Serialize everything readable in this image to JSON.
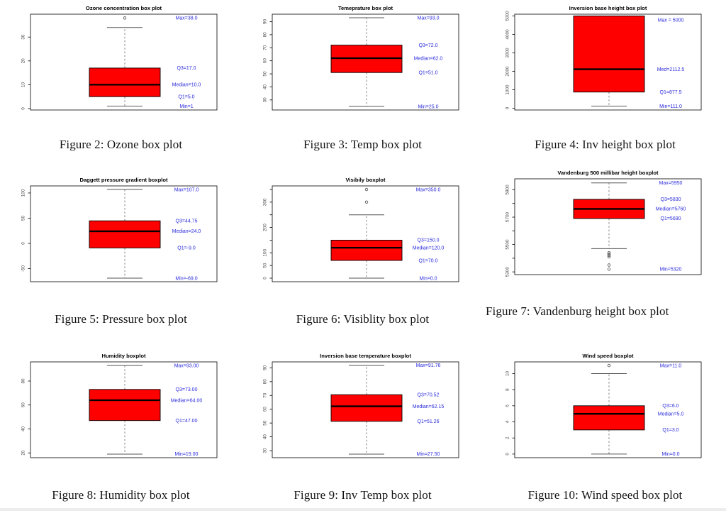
{
  "page": {
    "background": "#ffffff"
  },
  "colors": {
    "box_fill": "#fe0000",
    "box_border": "#000000",
    "median_line": "#000000",
    "whisker_dash": "#7a7a7a",
    "whisker_cap": "#555555",
    "outlier_stroke": "#4a4a4a",
    "panel_border": "#000000",
    "tick_label": "#3f3f3f",
    "plot_title": "#000000",
    "annotation_blue": "#2b2bdd",
    "caption_text": "#141414"
  },
  "chart_data": [
    {
      "type": "boxplot",
      "title": "Ozone concentration box plot",
      "ylim": [
        -0.6,
        39.6
      ],
      "ticks": [
        {
          "v": 0,
          "label": "0"
        },
        {
          "v": 10,
          "label": "10"
        },
        {
          "v": 20,
          "label": "20"
        },
        {
          "v": 30,
          "label": "30"
        }
      ],
      "stats": {
        "min": 1,
        "q1": 5,
        "median": 10,
        "q3": 17,
        "max": 38
      },
      "whisker_low": 1,
      "whisker_high": 34,
      "outliers": [
        38
      ],
      "annotations": [
        {
          "text": "Max=38.0",
          "v": 38
        },
        {
          "text": "Q3=17.0",
          "v": 17
        },
        {
          "text": "Median=10.0",
          "v": 10
        },
        {
          "text": "Q1=5.0",
          "v": 5
        },
        {
          "text": "Min=1",
          "v": 1
        }
      ]
    },
    {
      "type": "boxplot",
      "title": "Temeprature box plot",
      "ylim": [
        22.3,
        95.7
      ],
      "ticks": [
        {
          "v": 30,
          "label": "30"
        },
        {
          "v": 40,
          "label": "40"
        },
        {
          "v": 50,
          "label": "50"
        },
        {
          "v": 60,
          "label": "60"
        },
        {
          "v": 70,
          "label": "70"
        },
        {
          "v": 80,
          "label": "80"
        },
        {
          "v": 90,
          "label": "90"
        }
      ],
      "stats": {
        "min": 25,
        "q1": 51,
        "median": 62,
        "q3": 72,
        "max": 93
      },
      "whisker_low": 25,
      "whisker_high": 93,
      "outliers": [],
      "annotations": [
        {
          "text": "Max=93.0",
          "v": 93
        },
        {
          "text": "Q3=72.0",
          "v": 72
        },
        {
          "text": "Median=62.0",
          "v": 62
        },
        {
          "text": "Q1=51.0",
          "v": 51
        },
        {
          "text": "Min=25.0",
          "v": 25
        }
      ]
    },
    {
      "type": "boxplot",
      "title": "Inversion base height box plot",
      "ylim": [
        -95,
        5095
      ],
      "ticks": [
        {
          "v": 0,
          "label": "0"
        },
        {
          "v": 1000,
          "label": "1000"
        },
        {
          "v": 2000,
          "label": "2000"
        },
        {
          "v": 3000,
          "label": "3000"
        },
        {
          "v": 4000,
          "label": "4000"
        },
        {
          "v": 5000,
          "label": "5000"
        }
      ],
      "stats": {
        "min": 111,
        "q1": 877.5,
        "median": 2112.5,
        "q3": 5000,
        "max": 5000
      },
      "whisker_low": 111,
      "whisker_high": 5000,
      "outliers": [],
      "annotations": [
        {
          "text": "Max = 5000",
          "v": 4780
        },
        {
          "text": "Med=2112.5",
          "v": 2112.5
        },
        {
          "text": "Q1=877.5",
          "v": 877.5
        },
        {
          "text": "Min=111.0",
          "v": 111
        }
      ]
    },
    {
      "type": "boxplot",
      "title": "Daggett pressure gradient boxplot",
      "ylim": [
        -76,
        114
      ],
      "ticks": [
        {
          "v": -50,
          "label": "-50"
        },
        {
          "v": 0,
          "label": "0"
        },
        {
          "v": 50,
          "label": "50"
        },
        {
          "v": 100,
          "label": "100"
        }
      ],
      "stats": {
        "min": -69,
        "q1": -9,
        "median": 24,
        "q3": 44.75,
        "max": 107
      },
      "whisker_low": -69,
      "whisker_high": 107,
      "outliers": [],
      "annotations": [
        {
          "text": "Max=107.0",
          "v": 107
        },
        {
          "text": "Q3=44.75",
          "v": 44.75
        },
        {
          "text": "Median=24.0",
          "v": 24
        },
        {
          "text": "Q1=-9.0",
          "v": -9
        },
        {
          "text": "Min=-69.0",
          "v": -69
        }
      ]
    },
    {
      "type": "boxplot",
      "title": "Visibily boxplot",
      "ylim": [
        -14,
        364
      ],
      "ticks": [
        {
          "v": 0,
          "label": "0"
        },
        {
          "v": 50,
          "label": "50"
        },
        {
          "v": 100,
          "label": "100"
        },
        {
          "v": 150,
          "label": ""
        },
        {
          "v": 200,
          "label": "200"
        },
        {
          "v": 250,
          "label": ""
        },
        {
          "v": 300,
          "label": "300"
        },
        {
          "v": 350,
          "label": ""
        }
      ],
      "stats": {
        "min": 0,
        "q1": 70,
        "median": 120,
        "q3": 150,
        "max": 350
      },
      "whisker_low": 0,
      "whisker_high": 250,
      "outliers": [
        300,
        350
      ],
      "annotations": [
        {
          "text": "Max=350.0",
          "v": 350
        },
        {
          "text": "Q3=150.0",
          "v": 150
        },
        {
          "text": "Median=120.0",
          "v": 120
        },
        {
          "text": "Q1=70.0",
          "v": 70
        },
        {
          "text": "Min=0.0",
          "v": 0
        }
      ]
    },
    {
      "type": "boxplot",
      "title": "Vandenburg 500 millibar height boxplot",
      "ylim": [
        5280,
        5980
      ],
      "ticks": [
        {
          "v": 5300,
          "label": "5300"
        },
        {
          "v": 5400,
          "label": ""
        },
        {
          "v": 5500,
          "label": "5500"
        },
        {
          "v": 5600,
          "label": ""
        },
        {
          "v": 5700,
          "label": "5700"
        },
        {
          "v": 5800,
          "label": ""
        },
        {
          "v": 5900,
          "label": "5900"
        }
      ],
      "stats": {
        "min": 5320,
        "q1": 5690,
        "median": 5760,
        "q3": 5830,
        "max": 5950
      },
      "whisker_low": 5470,
      "whisker_high": 5950,
      "outliers": [
        5440,
        5430,
        5420,
        5410,
        5350,
        5320
      ],
      "annotations": [
        {
          "text": "Max=5950",
          "v": 5950
        },
        {
          "text": "Q3=5830",
          "v": 5830
        },
        {
          "text": "Median=5760",
          "v": 5760
        },
        {
          "text": "Q1=5690",
          "v": 5690
        },
        {
          "text": "Min=5320",
          "v": 5320
        }
      ]
    },
    {
      "type": "boxplot",
      "title": "Humidity boxplot",
      "ylim": [
        16,
        96
      ],
      "ticks": [
        {
          "v": 20,
          "label": "20"
        },
        {
          "v": 40,
          "label": "40"
        },
        {
          "v": 60,
          "label": "60"
        },
        {
          "v": 80,
          "label": "80"
        }
      ],
      "stats": {
        "min": 19,
        "q1": 47,
        "median": 64,
        "q3": 73,
        "max": 93
      },
      "whisker_low": 19,
      "whisker_high": 93,
      "outliers": [],
      "annotations": [
        {
          "text": "Max=93.00",
          "v": 93
        },
        {
          "text": "Q3=73.00",
          "v": 73
        },
        {
          "text": "Median=64.00",
          "v": 64
        },
        {
          "text": "Q1=47.00",
          "v": 47
        },
        {
          "text": "Min=19.00",
          "v": 19
        }
      ]
    },
    {
      "type": "boxplot",
      "title": "Inversion base temperature boxplot",
      "ylim": [
        24.9,
        94.3
      ],
      "ticks": [
        {
          "v": 30,
          "label": "30"
        },
        {
          "v": 40,
          "label": "40"
        },
        {
          "v": 50,
          "label": "50"
        },
        {
          "v": 60,
          "label": "60"
        },
        {
          "v": 70,
          "label": "70"
        },
        {
          "v": 80,
          "label": "80"
        },
        {
          "v": 90,
          "label": "90"
        }
      ],
      "stats": {
        "min": 27.5,
        "q1": 51.26,
        "median": 62.15,
        "q3": 70.52,
        "max": 91.76
      },
      "whisker_low": 27.5,
      "whisker_high": 91.76,
      "outliers": [],
      "annotations": [
        {
          "text": "Max=91.76",
          "v": 91.76
        },
        {
          "text": "Q3=70.52",
          "v": 70.52
        },
        {
          "text": "Median=62.15",
          "v": 62.15
        },
        {
          "text": "Q1=51.26",
          "v": 51.26
        },
        {
          "text": "Min=27.50",
          "v": 27.5
        }
      ]
    },
    {
      "type": "boxplot",
      "title": "Wind speed boxplot",
      "ylim": [
        -0.45,
        11.45
      ],
      "ticks": [
        {
          "v": 0,
          "label": "0"
        },
        {
          "v": 2,
          "label": "2"
        },
        {
          "v": 4,
          "label": "4"
        },
        {
          "v": 6,
          "label": "6"
        },
        {
          "v": 8,
          "label": "8"
        },
        {
          "v": 10,
          "label": "10"
        }
      ],
      "stats": {
        "min": 0,
        "q1": 3,
        "median": 5,
        "q3": 6,
        "max": 11
      },
      "whisker_low": 0,
      "whisker_high": 10,
      "outliers": [
        11
      ],
      "annotations": [
        {
          "text": "Max=11.0",
          "v": 11
        },
        {
          "text": "Q3=6.0",
          "v": 6
        },
        {
          "text": "Median=5.0",
          "v": 5
        },
        {
          "text": "Q1=3.0",
          "v": 3
        },
        {
          "text": "Min=0.0",
          "v": 0
        }
      ]
    }
  ],
  "captions": [
    {
      "text": "Figure 2: Ozone box plot"
    },
    {
      "text": "Figure 3: Temp box plot"
    },
    {
      "text": "Figure 4: Inv height box plot"
    },
    {
      "text": "Figure 5: Pressure box plot"
    },
    {
      "text": "Figure 6: Visiblity box plot"
    },
    {
      "text": "Figure 7: Vandenburg height box plot"
    },
    {
      "text": "Figure 8: Humidity box plot"
    },
    {
      "text": "Figure 9: Inv Temp box plot"
    },
    {
      "text": "Figure 10: Wind speed box plot"
    }
  ]
}
